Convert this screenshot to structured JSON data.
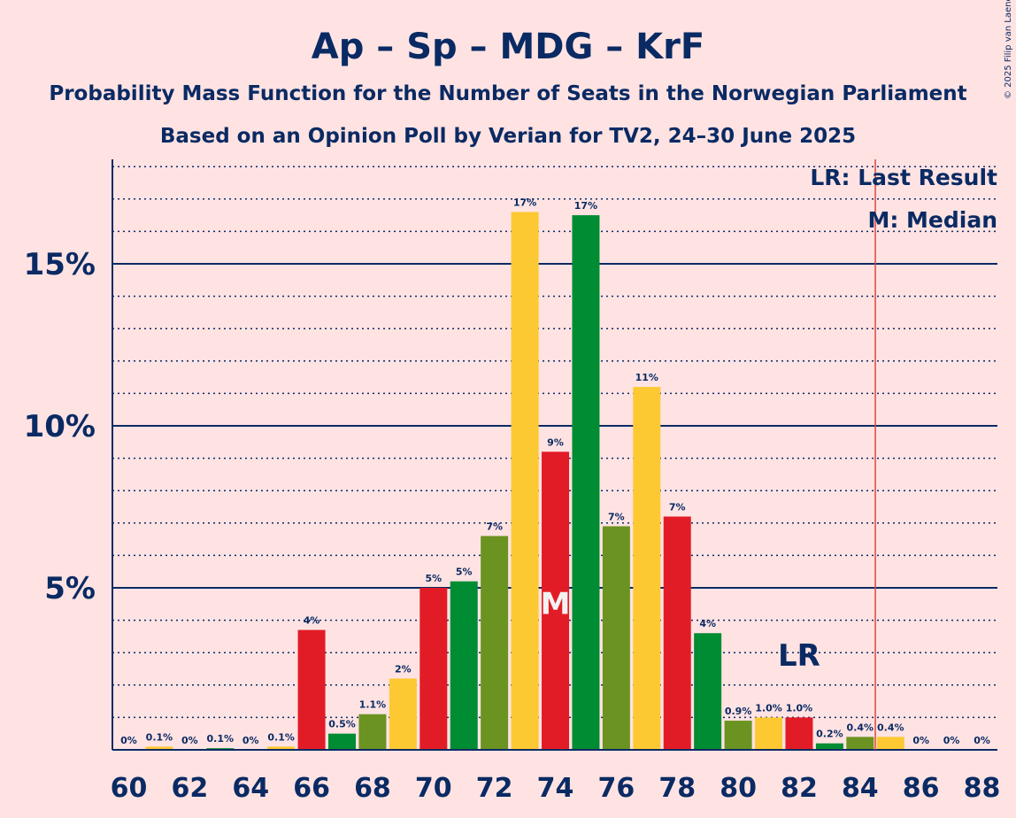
{
  "title": "Ap – Sp – MDG – KrF",
  "subtitle1": "Probability Mass Function for the Number of Seats in the Norwegian Parliament",
  "subtitle2": "Based on an Opinion Poll by Verian for TV2, 24–30 June 2025",
  "copyright": "© 2025 Filip van Laenen",
  "legend": {
    "last_result": "LR: Last Result",
    "median": "M: Median"
  },
  "colors": {
    "background": "#ffe3e3",
    "text": "#0a2a63",
    "cycle": [
      "#008c32",
      "#6b9321",
      "#fdc932",
      "#e21c26"
    ],
    "last_result_line": "#e0463c"
  },
  "chart_data": {
    "type": "bar",
    "x": [
      60,
      61,
      62,
      63,
      64,
      65,
      66,
      67,
      68,
      69,
      70,
      71,
      72,
      73,
      74,
      75,
      76,
      77,
      78,
      79,
      80,
      81,
      82,
      83,
      84,
      85,
      86,
      87,
      88
    ],
    "values": [
      0,
      0.1,
      0,
      0.05,
      0,
      0.1,
      3.7,
      0.5,
      1.1,
      2.2,
      5.0,
      5.2,
      6.6,
      16.6,
      9.2,
      16.5,
      6.9,
      11.2,
      7.2,
      3.6,
      0.9,
      1.0,
      1.0,
      0.2,
      0.4,
      0.4,
      0,
      0,
      0
    ],
    "labels": [
      "0%",
      "0.1%",
      "0%",
      "0.1%",
      "0%",
      "0.1%",
      "4%",
      "0.5%",
      "1.1%",
      "2%",
      "5%",
      "5%",
      "7%",
      "17%",
      "9%",
      "17%",
      "7%",
      "11%",
      "7%",
      "4%",
      "0.9%",
      "1.0%",
      "1.0%",
      "0.2%",
      "0.4%",
      "0.4%",
      "0%",
      "0%",
      "0%"
    ],
    "x_ticks": [
      "60",
      "62",
      "64",
      "66",
      "68",
      "70",
      "72",
      "74",
      "76",
      "78",
      "80",
      "82",
      "84",
      "86",
      "88"
    ],
    "y_ticks": [
      {
        "value": 5,
        "label": "5%"
      },
      {
        "value": 10,
        "label": "10%"
      },
      {
        "value": 15,
        "label": "15%"
      }
    ],
    "ylim": [
      0,
      18
    ],
    "median": 74,
    "median_label": "M",
    "last_result": 82,
    "last_result_label": "LR",
    "majority_line": 84.5
  }
}
